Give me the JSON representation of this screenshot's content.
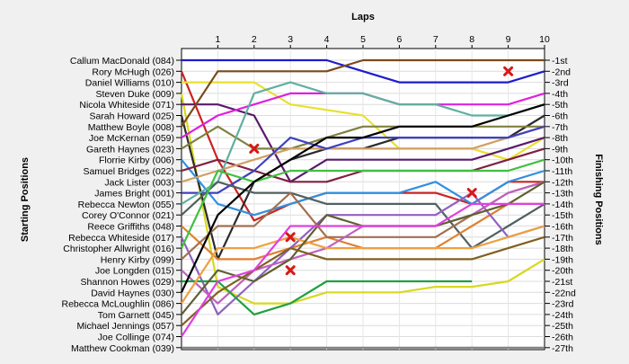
{
  "chart_data": {
    "type": "line",
    "title": "Laps",
    "ylabel_left": "Starting Positions",
    "ylabel_right": "Finishing Positions",
    "laps": [
      0,
      1,
      2,
      3,
      4,
      5,
      6,
      7,
      8,
      9,
      10
    ],
    "lap_labels": [
      "1",
      "2",
      "3",
      "4",
      "5",
      "6",
      "7",
      "8",
      "9",
      "10"
    ],
    "finishing_labels": [
      "1st",
      "2nd",
      "3rd",
      "4th",
      "5th",
      "6th",
      "7th",
      "8th",
      "9th",
      "10th",
      "11th",
      "12th",
      "13th",
      "14th",
      "15th",
      "16th",
      "17th",
      "18th",
      "19th",
      "20th",
      "21st",
      "22nd",
      "23rd",
      "24th",
      "25th",
      "26th",
      "27th"
    ],
    "series": [
      {
        "name": "Callum MacDonald (084)",
        "color": "#1c1ccc",
        "positions": [
          1,
          1,
          1,
          1,
          1,
          2,
          3,
          3,
          3,
          3,
          2
        ]
      },
      {
        "name": "Rory McHugh (026)",
        "color": "#cc2222",
        "positions": [
          2,
          10,
          15.5,
          14,
          13,
          13,
          13,
          13,
          14,
          12,
          12
        ]
      },
      {
        "name": "Daniel Williams (010)",
        "color": "#e8e030",
        "positions": [
          3,
          3,
          3,
          5,
          5.5,
          6,
          9,
          9,
          9,
          10,
          8
        ]
      },
      {
        "name": "Steven Duke (009)",
        "color": "#d8d820",
        "positions": [
          4,
          21.5,
          23,
          23,
          22,
          22,
          22,
          21.5,
          21.5,
          21,
          19
        ]
      },
      {
        "name": "Nicola Whiteside (071)",
        "color": "#5a1a6a",
        "positions": [
          5,
          5,
          6,
          12,
          10,
          10,
          10,
          10,
          10,
          9,
          8
        ]
      },
      {
        "name": "Sarah Howard (025)",
        "color": "#2a2a2a",
        "positions": [
          6,
          19,
          12,
          10,
          9,
          9,
          8,
          8,
          8,
          8,
          6
        ]
      },
      {
        "name": "Matthew Boyle (008)",
        "color": "#7a4a1a",
        "positions": [
          7,
          2,
          2,
          2,
          2,
          1,
          1,
          1,
          1,
          1,
          1
        ]
      },
      {
        "name": "Joe McKernan (059)",
        "color": "#e020e0",
        "positions": [
          8,
          6,
          5,
          4,
          4,
          4,
          5,
          5,
          5,
          5,
          4
        ]
      },
      {
        "name": "Gareth Haynes (023)",
        "color": "#808040",
        "positions": [
          9,
          7,
          9,
          9,
          8,
          7,
          7,
          7,
          7,
          7,
          7
        ]
      },
      {
        "name": "Florrie Kirby (006)",
        "color": "#3090e0",
        "positions": [
          10,
          14,
          15,
          14,
          13,
          13,
          13,
          12,
          14,
          12,
          11
        ]
      },
      {
        "name": "Samuel Bridges (022)",
        "color": "#802040",
        "positions": [
          11,
          10,
          11,
          12,
          12,
          11,
          11,
          11,
          11,
          10,
          9
        ]
      },
      {
        "name": "Jack Lister (003)",
        "color": "#d0a060",
        "positions": [
          12,
          11,
          10,
          9,
          9,
          9,
          9,
          9,
          9,
          8,
          7
        ]
      },
      {
        "name": "James Bright (001)",
        "color": "#4040c0",
        "positions": [
          13,
          13,
          11,
          8,
          9,
          8,
          8,
          8,
          8,
          8,
          7
        ]
      },
      {
        "name": "Rebecca Newton (055)",
        "color": "#60b0a0",
        "positions": [
          14,
          12,
          4,
          3,
          4,
          4,
          5,
          5,
          6,
          6,
          5
        ]
      },
      {
        "name": "Corey O'Connor (021)",
        "color": "#506060",
        "positions": [
          15,
          12,
          13,
          13,
          14,
          14,
          14,
          14,
          18,
          16,
          14
        ]
      },
      {
        "name": "Reece Griffiths (048)",
        "color": "#e08030",
        "positions": [
          16,
          19,
          19,
          18,
          17,
          18,
          18,
          18,
          16,
          14,
          14
        ]
      },
      {
        "name": "Rebecca Whiteside (017)",
        "color": "#9060c0",
        "positions": [
          17,
          24,
          21,
          18,
          15,
          15,
          15,
          15,
          13,
          17,
          16
        ]
      },
      {
        "name": "Christopher Allwright (016)",
        "color": "#40c040",
        "positions": [
          18,
          11,
          12,
          11,
          11,
          11,
          11,
          11,
          11,
          11,
          10
        ]
      },
      {
        "name": "Henry Kirby (099)",
        "color": "#a07050",
        "positions": [
          19,
          16,
          16,
          13,
          17,
          17,
          17,
          17,
          15,
          13,
          12
        ]
      },
      {
        "name": "Joe Longden (015)",
        "color": "#c060c0",
        "positions": [
          20,
          23,
          20,
          19,
          18,
          16,
          16,
          16,
          15,
          13,
          12
        ]
      },
      {
        "name": "Shannon Howes (029)",
        "color": "#20a040",
        "positions": [
          21,
          21,
          24,
          23,
          21,
          21,
          21,
          21,
          21,
          null,
          null
        ]
      },
      {
        "name": "David Haynes (030)",
        "color": "#000000",
        "positions": [
          22,
          15,
          12,
          10,
          8,
          8,
          7,
          7,
          7,
          6,
          5
        ]
      },
      {
        "name": "Rebecca McLoughlin (086)",
        "color": "#f0a040",
        "positions": [
          23,
          18,
          18,
          17,
          18,
          18,
          18,
          18,
          18,
          17,
          16
        ]
      },
      {
        "name": "Tom Garnett (045)",
        "color": "#606030",
        "positions": [
          24,
          20,
          21,
          19,
          15,
          16,
          16,
          16,
          15,
          14,
          12
        ]
      },
      {
        "name": "Michael Jennings (057)",
        "color": "#806020",
        "positions": [
          25,
          22,
          20,
          18,
          19,
          19,
          19,
          19,
          19,
          18,
          17
        ]
      },
      {
        "name": "Joe Collinge (074)",
        "color": "#e040e0",
        "positions": [
          26,
          21,
          20,
          16,
          16,
          16,
          16,
          16,
          14,
          14,
          14
        ]
      },
      {
        "name": "Matthew Cookman (039)",
        "color": "#808080",
        "positions": [
          27,
          27,
          27,
          27,
          27,
          27,
          27,
          27,
          27,
          27,
          27
        ]
      }
    ],
    "retirements": [
      {
        "lap": 2,
        "position": 9
      },
      {
        "lap": 3,
        "position": 17
      },
      {
        "lap": 3,
        "position": 20
      },
      {
        "lap": 8,
        "position": 13
      },
      {
        "lap": 9,
        "position": 2
      }
    ],
    "grid": true
  }
}
